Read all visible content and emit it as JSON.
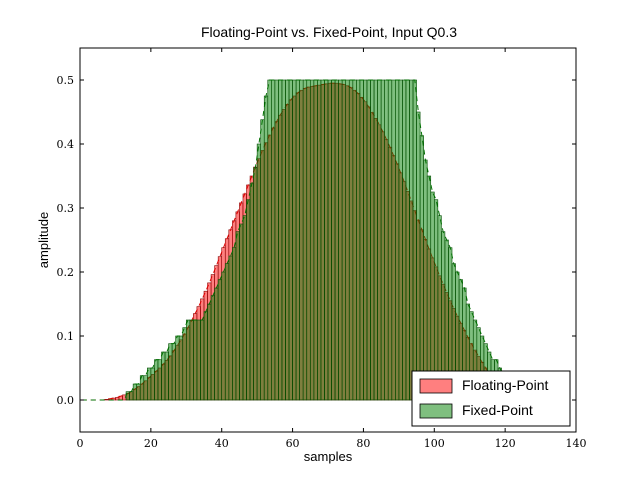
{
  "chart_data": {
    "type": "bar",
    "title": "Floating-Point vs. Fixed-Point, Input Q0.3",
    "xlabel": "samples",
    "ylabel": "amplitude",
    "xlim": [
      0,
      140
    ],
    "ylim": [
      -0.05,
      0.55
    ],
    "xticks": [
      "0",
      "20",
      "40",
      "60",
      "80",
      "100",
      "120",
      "140"
    ],
    "yticks": [
      "0.0",
      "0.1",
      "0.2",
      "0.3",
      "0.4",
      "0.5"
    ],
    "grid": false,
    "legend_position": "lower-right",
    "x": [
      0,
      1,
      2,
      3,
      4,
      5,
      6,
      7,
      8,
      9,
      10,
      11,
      12,
      13,
      14,
      15,
      16,
      17,
      18,
      19,
      20,
      21,
      22,
      23,
      24,
      25,
      26,
      27,
      28,
      29,
      30,
      31,
      32,
      33,
      34,
      35,
      36,
      37,
      38,
      39,
      40,
      41,
      42,
      43,
      44,
      45,
      46,
      47,
      48,
      49,
      50,
      51,
      52,
      53,
      54,
      55,
      56,
      57,
      58,
      59,
      60,
      61,
      62,
      63,
      64,
      65,
      66,
      67,
      68,
      69,
      70,
      71,
      72,
      73,
      74,
      75,
      76,
      77,
      78,
      79,
      80,
      81,
      82,
      83,
      84,
      85,
      86,
      87,
      88,
      89,
      90,
      91,
      92,
      93,
      94,
      95,
      96,
      97,
      98,
      99,
      100,
      101,
      102,
      103,
      104,
      105,
      106,
      107,
      108,
      109,
      110,
      111,
      112,
      113,
      114,
      115,
      116,
      117,
      118,
      119,
      120,
      121,
      122,
      123,
      124,
      125,
      126,
      127,
      128,
      129
    ],
    "series": [
      {
        "name": "Floating-Point",
        "color": "#ff0000",
        "opacity": 0.5,
        "values": [
          0,
          0,
          0,
          0,
          0,
          0,
          0,
          0.001,
          0.002,
          0.003,
          0.004,
          0.006,
          0.008,
          0.01,
          0.013,
          0.017,
          0.021,
          0.025,
          0.03,
          0.035,
          0.04,
          0.045,
          0.05,
          0.056,
          0.062,
          0.069,
          0.077,
          0.085,
          0.094,
          0.103,
          0.113,
          0.124,
          0.135,
          0.146,
          0.158,
          0.17,
          0.183,
          0.196,
          0.21,
          0.224,
          0.238,
          0.252,
          0.266,
          0.28,
          0.294,
          0.308,
          0.322,
          0.336,
          0.35,
          0.364,
          0.377,
          0.39,
          0.402,
          0.414,
          0.425,
          0.435,
          0.445,
          0.454,
          0.462,
          0.469,
          0.475,
          0.48,
          0.484,
          0.487,
          0.489,
          0.49,
          0.491,
          0.492,
          0.493,
          0.494,
          0.495,
          0.495,
          0.495,
          0.494,
          0.493,
          0.491,
          0.488,
          0.484,
          0.479,
          0.473,
          0.466,
          0.458,
          0.449,
          0.44,
          0.43,
          0.419,
          0.407,
          0.395,
          0.382,
          0.369,
          0.355,
          0.341,
          0.326,
          0.311,
          0.296,
          0.281,
          0.266,
          0.251,
          0.236,
          0.222,
          0.208,
          0.194,
          0.181,
          0.168,
          0.155,
          0.143,
          0.131,
          0.12,
          0.109,
          0.098,
          0.088,
          0.078,
          0.068,
          0.059,
          0.05,
          0.042,
          0.035,
          0.028,
          0.022,
          0.017,
          0.012,
          0.009,
          0.006,
          0.004,
          0.002,
          0.001,
          0,
          0,
          0,
          0
        ]
      },
      {
        "name": "Fixed-Point",
        "color": "#008000",
        "opacity": 0.5,
        "values": [
          0,
          0,
          0,
          0,
          0,
          0,
          0,
          0,
          0,
          0,
          0,
          0,
          0,
          0.013,
          0.013,
          0.025,
          0.025,
          0.038,
          0.038,
          0.05,
          0.05,
          0.063,
          0.063,
          0.075,
          0.075,
          0.088,
          0.088,
          0.1,
          0.1,
          0.113,
          0.125,
          0.125,
          0.125,
          0.125,
          0.125,
          0.138,
          0.15,
          0.163,
          0.175,
          0.188,
          0.2,
          0.213,
          0.225,
          0.238,
          0.263,
          0.275,
          0.288,
          0.313,
          0.338,
          0.363,
          0.4,
          0.438,
          0.475,
          0.5,
          0.5,
          0.5,
          0.5,
          0.5,
          0.5,
          0.5,
          0.5,
          0.5,
          0.5,
          0.5,
          0.5,
          0.5,
          0.5,
          0.5,
          0.5,
          0.5,
          0.5,
          0.5,
          0.5,
          0.5,
          0.5,
          0.5,
          0.5,
          0.5,
          0.5,
          0.5,
          0.5,
          0.5,
          0.5,
          0.5,
          0.5,
          0.5,
          0.5,
          0.5,
          0.5,
          0.5,
          0.5,
          0.5,
          0.5,
          0.5,
          0.5,
          0.45,
          0.413,
          0.375,
          0.35,
          0.325,
          0.313,
          0.288,
          0.263,
          0.25,
          0.238,
          0.213,
          0.2,
          0.188,
          0.175,
          0.15,
          0.138,
          0.125,
          0.113,
          0.1,
          0.088,
          0.075,
          0.063,
          0.063,
          0.05,
          0.038,
          0.038,
          0.025,
          0.013,
          0.013,
          0.013,
          0,
          0,
          0,
          0,
          0
        ]
      }
    ]
  }
}
